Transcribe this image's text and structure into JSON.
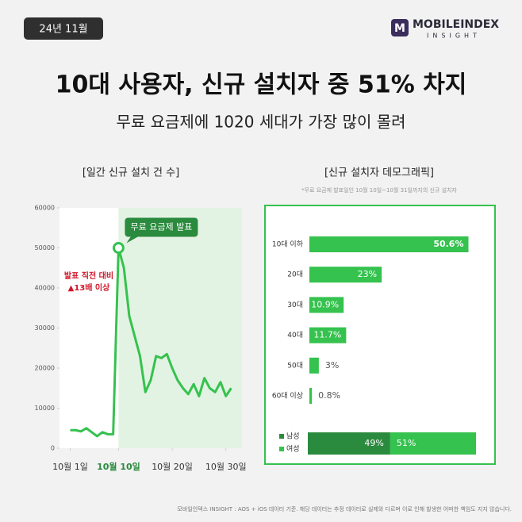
{
  "header": {
    "badge": "24년 11월",
    "logo": "MOBILEINDEX",
    "logo_sub": "INSIGHT",
    "title": "10대 사용자, 신규 설치자 중 51% 차지",
    "subtitle": "무료 요금제에 1020 세대가 가장 많이 몰려"
  },
  "chart_data": [
    {
      "type": "line",
      "title": "[일간 신규 설치 건 수]",
      "color": "#35c24e",
      "x": [
        1,
        2,
        3,
        4,
        5,
        6,
        7,
        8,
        9,
        10,
        11,
        12,
        13,
        14,
        15,
        16,
        17,
        18,
        19,
        20,
        21,
        22,
        23,
        24,
        25,
        26,
        27,
        28,
        29,
        30,
        31
      ],
      "values": [
        4500,
        4500,
        4200,
        5000,
        4000,
        3000,
        4000,
        3500,
        3500,
        50000,
        45000,
        33000,
        28000,
        23000,
        14000,
        17000,
        23000,
        22500,
        23500,
        20000,
        17000,
        15000,
        13500,
        16000,
        13000,
        17500,
        15000,
        14000,
        16500,
        13000,
        15000
      ],
      "xlim": [
        -1,
        33
      ],
      "ylim": [
        0,
        60000
      ],
      "xticks": [
        {
          "value": 1,
          "label": "10월 1일"
        },
        {
          "value": 10,
          "label": "10월 10일"
        },
        {
          "value": 20,
          "label": "10월 20일"
        },
        {
          "value": 30,
          "label": "10월 30일"
        }
      ],
      "yticks": [
        0,
        10000,
        20000,
        30000,
        40000,
        50000,
        60000
      ],
      "highlight_from": 10,
      "callout": "무료 요금제 발표",
      "callout_x": 10,
      "note_lines": [
        "발표 직전 대비",
        "▲13배 이상"
      ]
    },
    {
      "type": "hbar",
      "title": "[신규 설치자 데모그래픽]",
      "subtitle": "*무료 요금제 발표일인 10월 10일~10월 31일까지의 신규 설치자",
      "color": "#35c24e",
      "categories": [
        "10대 이하",
        "20대",
        "30대",
        "40대",
        "50대",
        "60대 이상"
      ],
      "values": [
        50.6,
        23,
        10.9,
        11.7,
        3,
        0.8
      ],
      "value_labels": [
        "50.6%",
        "23%",
        "10.9%",
        "11.7%",
        "3%",
        "0.8%"
      ],
      "xlim": [
        0,
        53
      ]
    },
    {
      "type": "stacked_hbar",
      "xlim": [
        0,
        100
      ],
      "series": [
        {
          "name": "남성",
          "color": "#2a8a3d",
          "values": [
            49
          ],
          "value_labels": [
            "49%"
          ]
        },
        {
          "name": "여성",
          "color": "#35c24e",
          "values": [
            51
          ],
          "value_labels": [
            "51%"
          ]
        }
      ]
    }
  ],
  "footer": "모바일인덱스 INSIGHT : AOS + iOS 데이터 기준. 해당 데이터는 추정 데이터로 실제와 다르며 이로 인해 발생한 어떠한 책임도 지지 않습니다."
}
